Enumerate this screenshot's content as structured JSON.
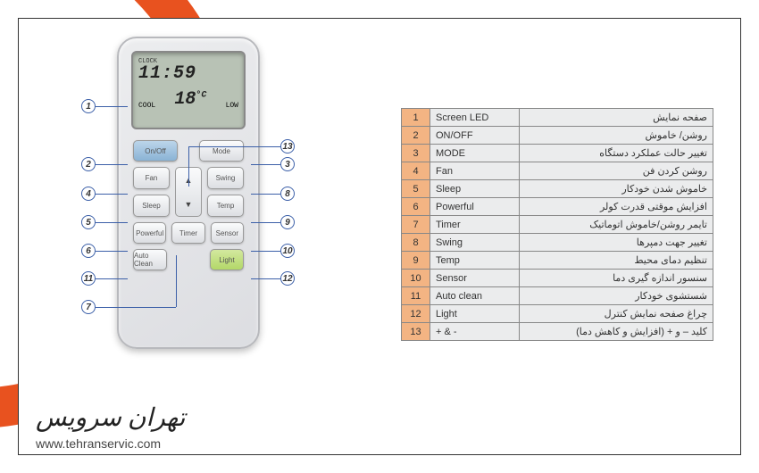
{
  "lcd": {
    "clock_label": "CLOCK",
    "clock": "11:59",
    "cool": "COOL",
    "temp": "18",
    "temp_unit": "°C",
    "low": "LOW"
  },
  "buttons": {
    "onoff": "On/Off",
    "mode": "Mode",
    "fan": "Fan",
    "swing": "Swing",
    "sleep": "Sleep",
    "temp": "Temp",
    "powerful": "Powerful",
    "timer": "Timer",
    "sensor": "Sensor",
    "autoclean": "Auto Clean",
    "light": "Light",
    "up": "▲",
    "down": "▼"
  },
  "callouts": {
    "c1": "1",
    "c2": "2",
    "c3": "3",
    "c4": "4",
    "c5": "5",
    "c6": "6",
    "c7": "7",
    "c8": "8",
    "c9": "9",
    "c10": "10",
    "c11": "11",
    "c12": "12",
    "c13": "13"
  },
  "table": [
    {
      "n": "1",
      "en": "Screen LED",
      "fa": "صفحه نمایش"
    },
    {
      "n": "2",
      "en": "ON/OFF",
      "fa": "روشن/ خاموش"
    },
    {
      "n": "3",
      "en": "MODE",
      "fa": "تغییر حالت عملکرد دستگاه"
    },
    {
      "n": "4",
      "en": "Fan",
      "fa": "روشن کردن فن"
    },
    {
      "n": "5",
      "en": "Sleep",
      "fa": "خاموش شدن خودکار"
    },
    {
      "n": "6",
      "en": "Powerful",
      "fa": "افزایش موقتی قدرت کولر"
    },
    {
      "n": "7",
      "en": "Timer",
      "fa": "تایمر روشن/خاموش اتوماتیک"
    },
    {
      "n": "8",
      "en": "Swing",
      "fa": "تغییر جهت دمپرها"
    },
    {
      "n": "9",
      "en": "Temp",
      "fa": "تنظیم دمای محیط"
    },
    {
      "n": "10",
      "en": "Sensor",
      "fa": "سنسور اندازه گیری دما"
    },
    {
      "n": "11",
      "en": "Auto clean",
      "fa": "شستشوی خودکار"
    },
    {
      "n": "12",
      "en": "Light",
      "fa": "چراغ صفحه نمایش کنترل"
    },
    {
      "n": "13",
      "en": "+ & -",
      "fa": "کلید – و + (افزایش و کاهش دما)"
    }
  ],
  "footer": {
    "brand": "تهران سرویس",
    "url": "www.tehranservic.com"
  },
  "colors": {
    "accent": "#e8521f",
    "table_num_bg": "#f3b483",
    "table_cell_bg": "#ebeced",
    "callout_border": "#3b5fa8"
  }
}
